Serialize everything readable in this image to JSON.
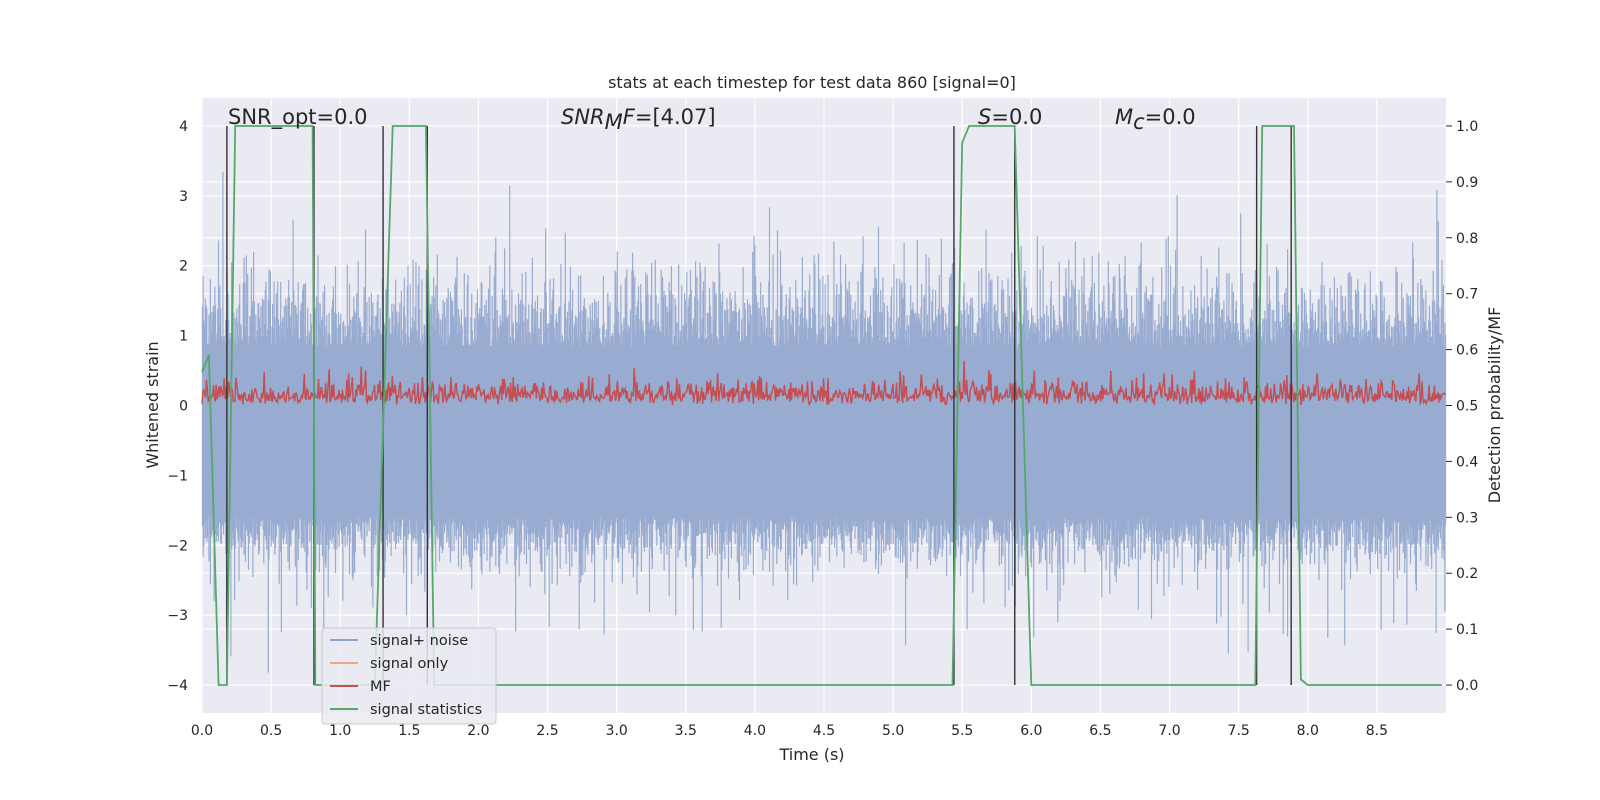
{
  "chart_data": {
    "type": "line",
    "title": "stats at each timestep for test data 860 [signal=0]",
    "xlabel": "Time (s)",
    "ylabel": "Whitened strain",
    "y2label": "Detection probability/MF",
    "xlim": [
      0.0,
      9.0
    ],
    "ylim": [
      -4.4,
      4.4
    ],
    "y2lim": [
      -0.05,
      1.05
    ],
    "x_ticks": [
      "0.0",
      "0.5",
      "1.0",
      "1.5",
      "2.0",
      "2.5",
      "3.0",
      "3.5",
      "4.0",
      "4.5",
      "5.0",
      "5.5",
      "6.0",
      "6.5",
      "7.0",
      "7.5",
      "8.0",
      "8.5"
    ],
    "y_ticks": [
      "4",
      "3",
      "2",
      "1",
      "0",
      "−1",
      "−2",
      "−3",
      "−4"
    ],
    "y2_ticks": [
      "1.0",
      "0.9",
      "0.8",
      "0.7",
      "0.6",
      "0.5",
      "0.4",
      "0.3",
      "0.2",
      "0.1",
      "0.0"
    ],
    "grid": true,
    "legend_position": "lower-left",
    "annotations": {
      "snr_opt": "SNR_opt=0.0",
      "snr_mf_sym": "SNR",
      "snr_mf_sub": "M",
      "snr_mf_rest": "F=[4.07]",
      "s_sym": "S",
      "s_rest": "=0.0",
      "mc_sym": "M",
      "mc_sub": "c",
      "mc_rest": "=0.0"
    },
    "series": [
      {
        "name": "signal+ noise",
        "color": "#8fa4cc",
        "axis": "left",
        "envelope": {
          "lower_typical": -1.6,
          "upper_typical": 2.4,
          "min": -3.85,
          "max": 4.0
        }
      },
      {
        "name": "signal only",
        "color": "#e8a68a",
        "axis": "left",
        "values": []
      },
      {
        "name": "MF",
        "color": "#c44e52",
        "axis": "right",
        "envelope": {
          "lower": 0.5,
          "upper_typical": 0.57,
          "max": 0.61
        }
      },
      {
        "name": "signal statistics",
        "color": "#55a868",
        "axis": "right",
        "x": [
          0.0,
          0.05,
          0.12,
          0.18,
          0.24,
          0.8,
          0.82,
          1.25,
          1.38,
          1.62,
          1.68,
          5.43,
          5.5,
          5.55,
          5.88,
          6.0,
          7.62,
          7.67,
          7.9,
          7.95,
          8.0,
          8.97
        ],
        "y": [
          0.56,
          0.59,
          0.0,
          0.0,
          1.0,
          1.0,
          0.0,
          0.0,
          1.0,
          1.0,
          0.0,
          0.0,
          0.97,
          1.0,
          1.0,
          0.0,
          0.0,
          1.0,
          1.0,
          0.01,
          0.0,
          0.0
        ]
      }
    ],
    "vertical_lines_x": [
      0.18,
      0.81,
      1.31,
      1.63,
      5.44,
      5.88,
      7.63,
      7.88
    ]
  },
  "legend": {
    "items": [
      {
        "label": "signal+ noise",
        "color": "#8fa4cc"
      },
      {
        "label": "signal only",
        "color": "#e8a68a"
      },
      {
        "label": "MF",
        "color": "#c44e52"
      },
      {
        "label": "signal statistics",
        "color": "#55a868"
      }
    ]
  }
}
